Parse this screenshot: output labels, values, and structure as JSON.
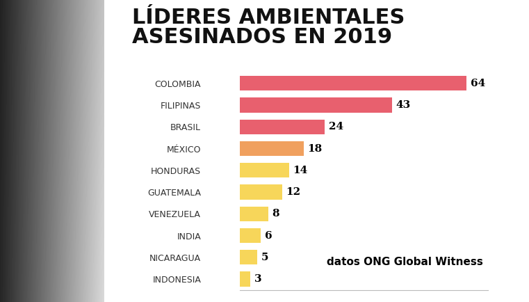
{
  "chart_data": {
    "type": "bar",
    "orientation": "horizontal",
    "title": "LÍDERES AMBIENTALES\nASESINADOS EN 2019",
    "categories": [
      "COLOMBIA",
      "FILIPINAS",
      "BRASIL",
      "MÉXICO",
      "HONDURAS",
      "GUATEMALA",
      "VENEZUELA",
      "INDIA",
      "NICARAGUA",
      "INDONESIA"
    ],
    "values": [
      64,
      43,
      24,
      18,
      14,
      12,
      8,
      6,
      5,
      3
    ],
    "colors": [
      "#e8606e",
      "#e8606e",
      "#e8606e",
      "#f0a05e",
      "#f7d65a",
      "#f7d65a",
      "#f7d65a",
      "#f7d65a",
      "#f7d65a",
      "#f7d65a"
    ],
    "xlim": [
      0,
      70
    ],
    "xticks": [],
    "data_labels": true,
    "tick_labels": "y",
    "grid": false,
    "annotation": "datos ONG Global Witness"
  }
}
